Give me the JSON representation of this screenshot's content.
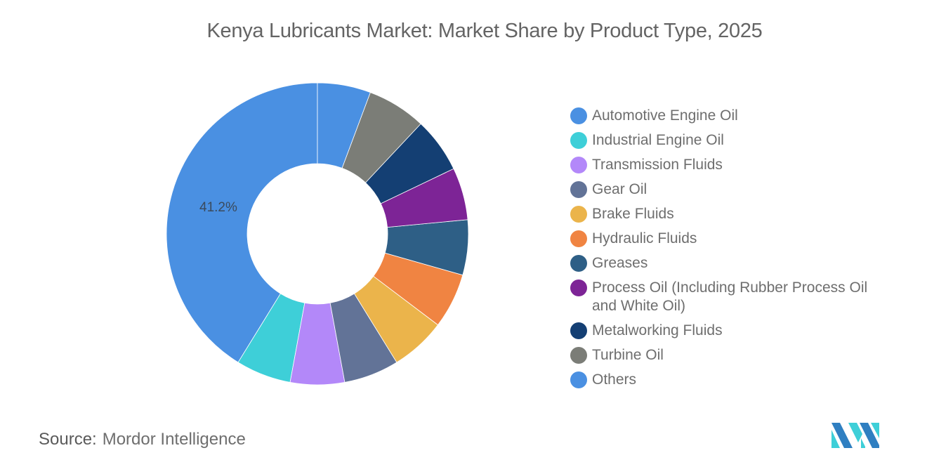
{
  "title": "Kenya Lubricants Market: Market Share by Product Type, 2025",
  "source": {
    "label": "Source:",
    "value": "Mordor Intelligence"
  },
  "chart_data": {
    "type": "pie",
    "subtype": "donut",
    "title": "Kenya Lubricants Market: Market Share by Product Type, 2025",
    "categories": [
      "Automotive Engine Oil",
      "Industrial Engine Oil",
      "Transmission Fluids",
      "Gear Oil",
      "Brake Fluids",
      "Hydraulic Fluids",
      "Greases",
      "Process Oil (Including Rubber Process Oil and White Oil)",
      "Metalworking Fluids",
      "Turbine Oil",
      "Others"
    ],
    "values": [
      41.2,
      5.9,
      5.8,
      5.9,
      5.9,
      5.9,
      5.9,
      5.6,
      5.9,
      6.3,
      5.7
    ],
    "colors": [
      "#4a90e2",
      "#3ecfd8",
      "#b388f9",
      "#627397",
      "#ebb44b",
      "#f08442",
      "#2e5f86",
      "#7d2496",
      "#143f73",
      "#7b7d77",
      "#4a90e2"
    ],
    "data_labels": [
      {
        "category": "Automotive Engine Oil",
        "text": "41.2%"
      }
    ],
    "legend_position": "right",
    "direction": "counterclockwise-from-top"
  },
  "legend": [
    {
      "label": "Automotive Engine Oil",
      "color": "#4a90e2"
    },
    {
      "label": "Industrial Engine Oil",
      "color": "#3ecfd8"
    },
    {
      "label": "Transmission Fluids",
      "color": "#b388f9"
    },
    {
      "label": "Gear Oil",
      "color": "#627397"
    },
    {
      "label": "Brake Fluids",
      "color": "#ebb44b"
    },
    {
      "label": "Hydraulic Fluids",
      "color": "#f08442"
    },
    {
      "label": "Greases",
      "color": "#2e5f86"
    },
    {
      "label": "Process Oil (Including Rubber Process Oil and White Oil)",
      "color": "#7d2496"
    },
    {
      "label": "Metalworking Fluids",
      "color": "#143f73"
    },
    {
      "label": "Turbine Oil",
      "color": "#7b7d77"
    },
    {
      "label": "Others",
      "color": "#4a90e2"
    }
  ],
  "data_label": "41.2%",
  "logo": {
    "colors": [
      "#2f7fc1",
      "#3ecfd8"
    ]
  }
}
